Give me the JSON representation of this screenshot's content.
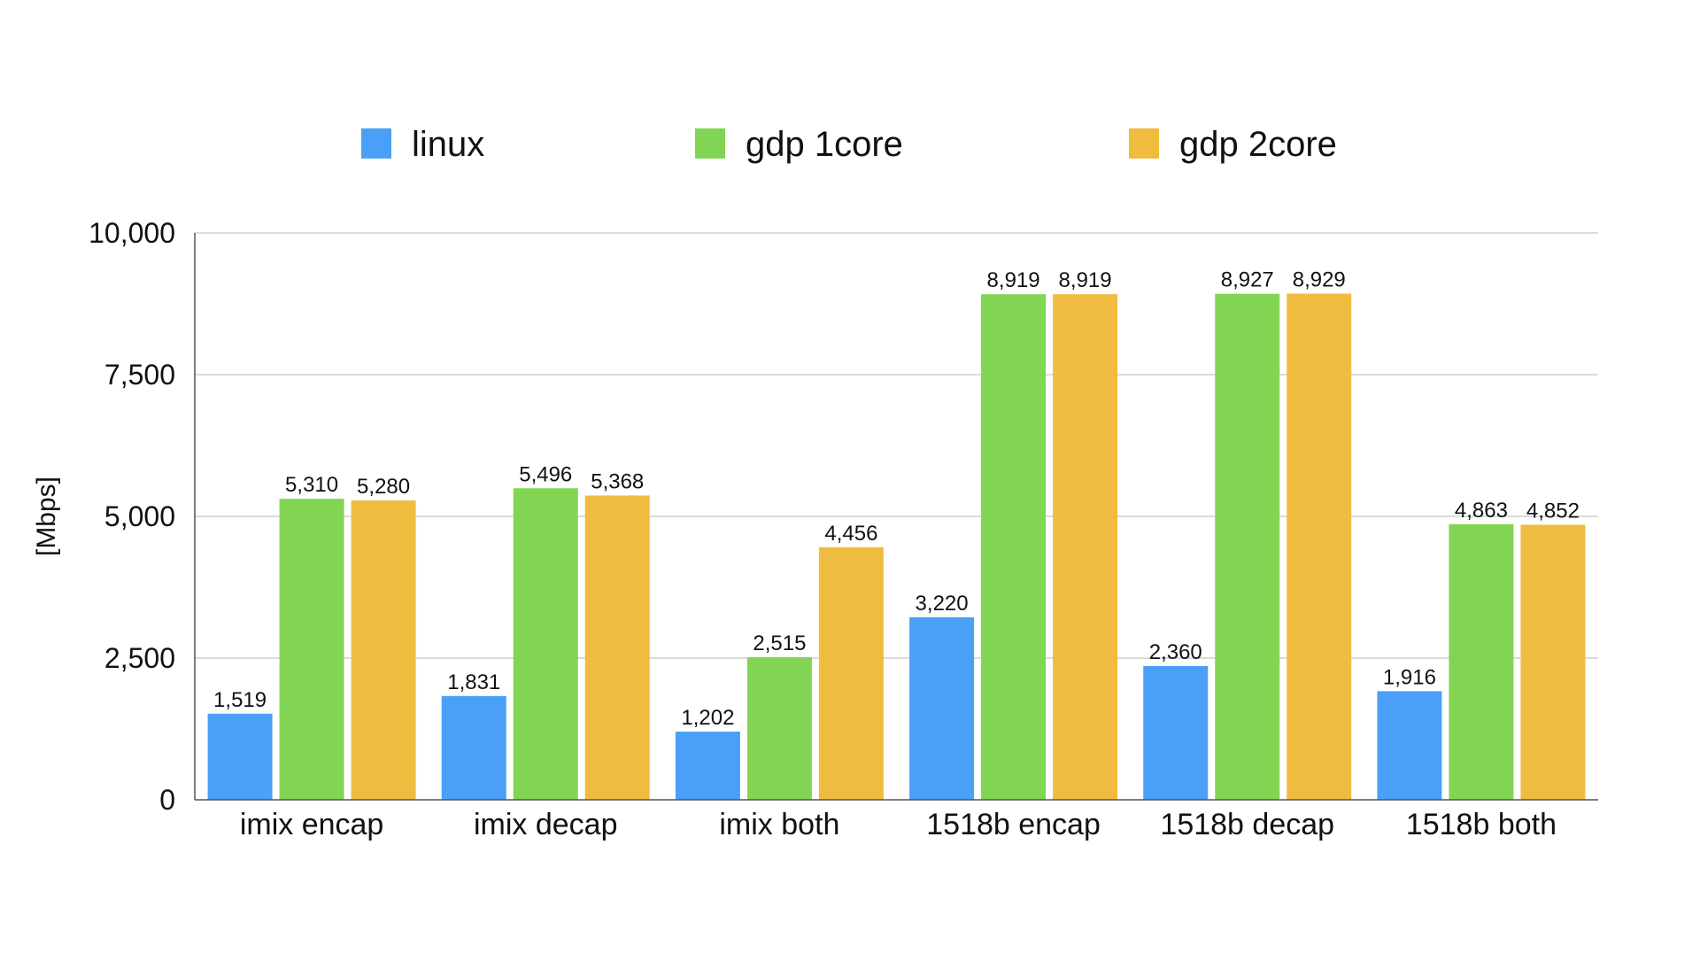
{
  "chart_data": {
    "type": "bar",
    "title": "",
    "xlabel": "",
    "ylabel": "[Mbps]",
    "ylim": [
      0,
      10000
    ],
    "yticks": [
      0,
      2500,
      5000,
      7500,
      10000
    ],
    "ytick_labels": [
      "0",
      "2,500",
      "5,000",
      "7,500",
      "10,000"
    ],
    "grid": true,
    "legend_position": "top",
    "categories": [
      "imix encap",
      "imix decap",
      "imix both",
      "1518b encap",
      "1518b decap",
      "1518b both"
    ],
    "series": [
      {
        "name": "linux",
        "color": "#4aa0f7",
        "values": [
          1519,
          1831,
          1202,
          3220,
          2360,
          1916
        ],
        "labels": [
          "1,519",
          "1,831",
          "1,202",
          "3,220",
          "2,360",
          "1,916"
        ]
      },
      {
        "name": "gdp 1core",
        "color": "#82d552",
        "values": [
          5310,
          5496,
          2515,
          8919,
          8927,
          4863
        ],
        "labels": [
          "5,310",
          "5,496",
          "2,515",
          "8,919",
          "8,927",
          "4,863"
        ]
      },
      {
        "name": "gdp 2core",
        "color": "#efbc40",
        "values": [
          5280,
          5368,
          4456,
          8919,
          8929,
          4852
        ],
        "labels": [
          "5,280",
          "5,368",
          "4,456",
          "8,919",
          "8,929",
          "4,852"
        ]
      }
    ]
  }
}
